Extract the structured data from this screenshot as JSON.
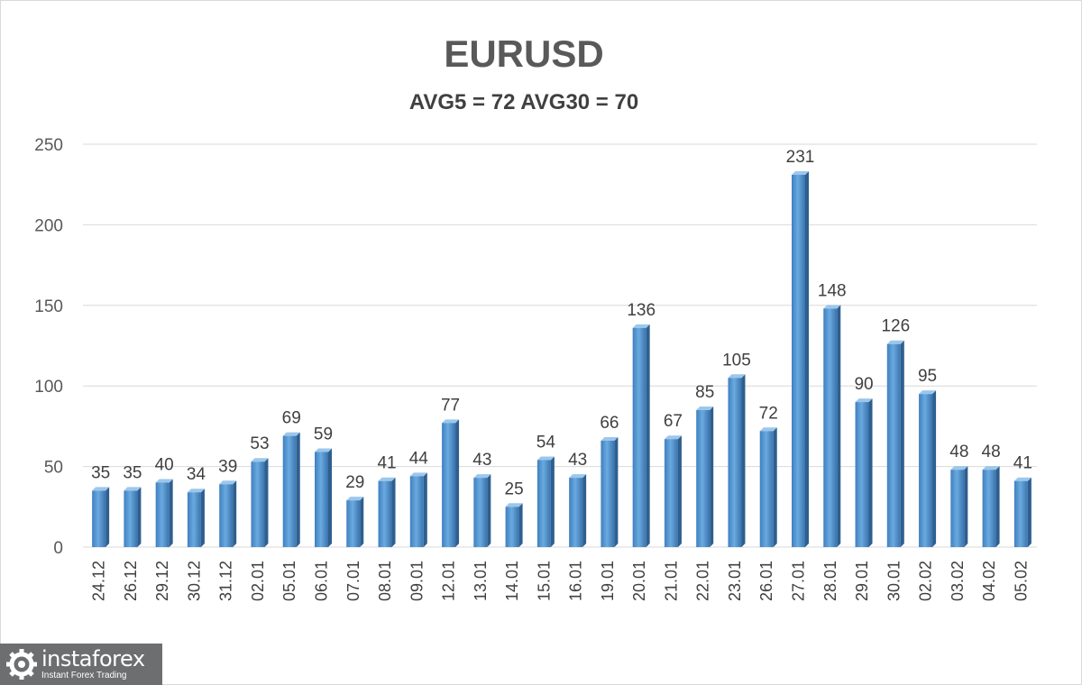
{
  "chart_data": {
    "type": "bar",
    "title": "EURUSD",
    "subtitle": "AVG5 = 72 AVG30 = 70",
    "xlabel": "",
    "ylabel": "",
    "ylim": [
      0,
      250
    ],
    "yticks": [
      0,
      50,
      100,
      150,
      200,
      250
    ],
    "grid": true,
    "legend": "none",
    "categories": [
      "24.12",
      "26.12",
      "29.12",
      "30.12",
      "31.12",
      "02.01",
      "05.01",
      "06.01",
      "07.01",
      "08.01",
      "09.01",
      "12.01",
      "13.01",
      "14.01",
      "15.01",
      "16.01",
      "19.01",
      "20.01",
      "21.01",
      "22.01",
      "23.01",
      "26.01",
      "27.01",
      "28.01",
      "29.01",
      "30.01",
      "02.02",
      "03.02",
      "04.02",
      "05.02"
    ],
    "values": [
      35,
      35,
      40,
      34,
      39,
      53,
      69,
      59,
      29,
      41,
      44,
      77,
      43,
      25,
      54,
      43,
      66,
      136,
      67,
      85,
      105,
      72,
      231,
      148,
      90,
      126,
      95,
      48,
      48,
      41
    ],
    "bar_color": "#5b9bd5"
  },
  "logo": {
    "name": "instaforex",
    "tagline": "Instant Forex Trading"
  }
}
